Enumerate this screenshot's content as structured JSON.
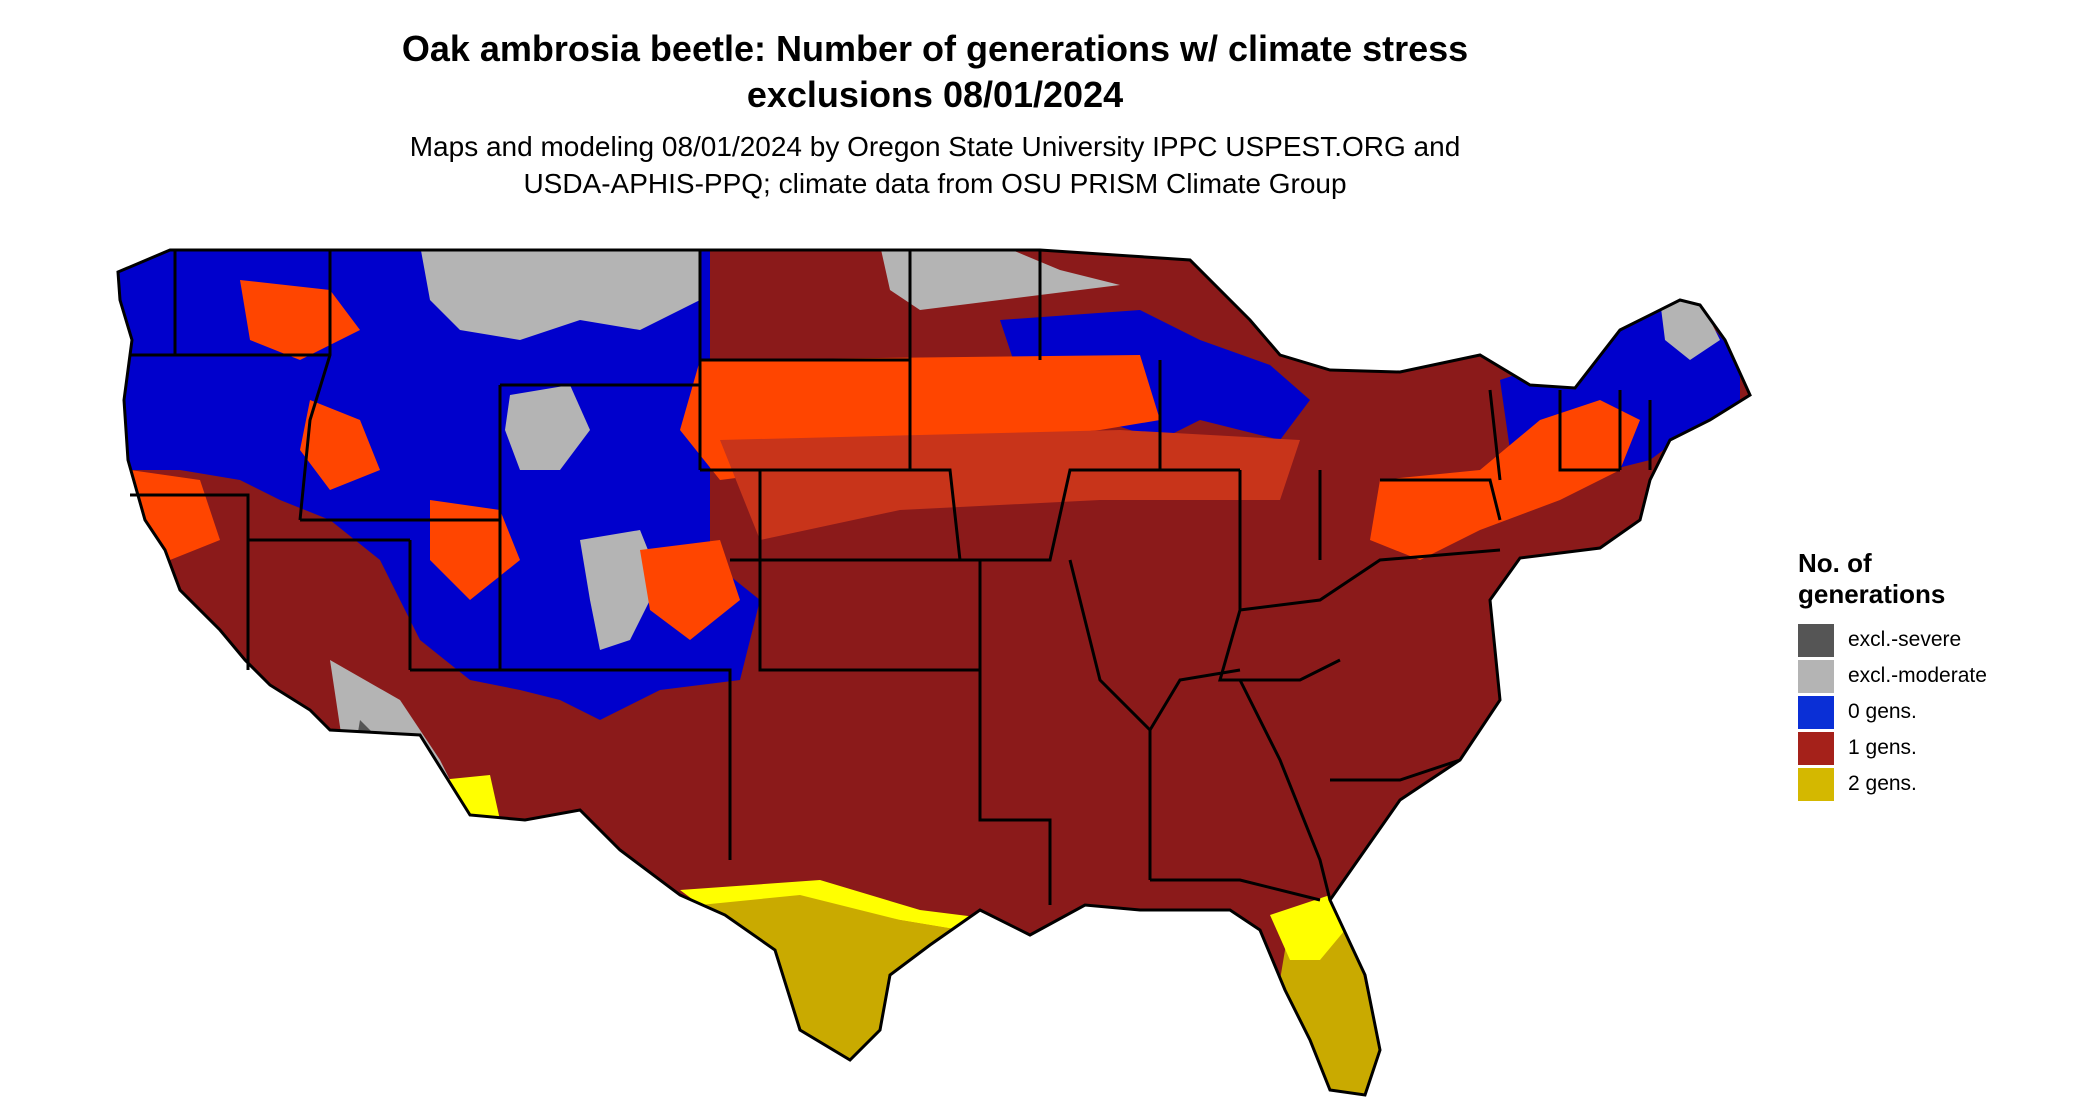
{
  "title": {
    "line1": "Oak ambrosia beetle: Number of generations w/ climate stress",
    "line2": "exclusions 08/01/2024"
  },
  "subtitle": {
    "line1": "Maps and modeling 08/01/2024 by Oregon State University IPPC USPEST.ORG and",
    "line2": "USDA-APHIS-PPQ; climate data from OSU PRISM Climate Group"
  },
  "legend": {
    "title_line1": "No. of",
    "title_line2": "generations",
    "items": [
      {
        "label": "excl.-severe",
        "color": "#555555"
      },
      {
        "label": "excl.-moderate",
        "color": "#b4b4b4"
      },
      {
        "label": "0 gens.",
        "color": "#0a2fd6"
      },
      {
        "label": "1 gens.",
        "color": "#a5211a"
      },
      {
        "label": "2 gens.",
        "color": "#d4b800"
      }
    ]
  },
  "map": {
    "colors": {
      "excl_severe": "#555555",
      "excl_moderate": "#b4b4b4",
      "zero_gens_map": "#0000cc",
      "one_gen_map": "#8b1a1a",
      "one_gen_partial": "#ff4500",
      "one_gen_mid": "#c8341a",
      "two_gens_map": "#c9aa00",
      "two_gens_partial": "#ffff00",
      "state_borders": "#000000"
    }
  }
}
